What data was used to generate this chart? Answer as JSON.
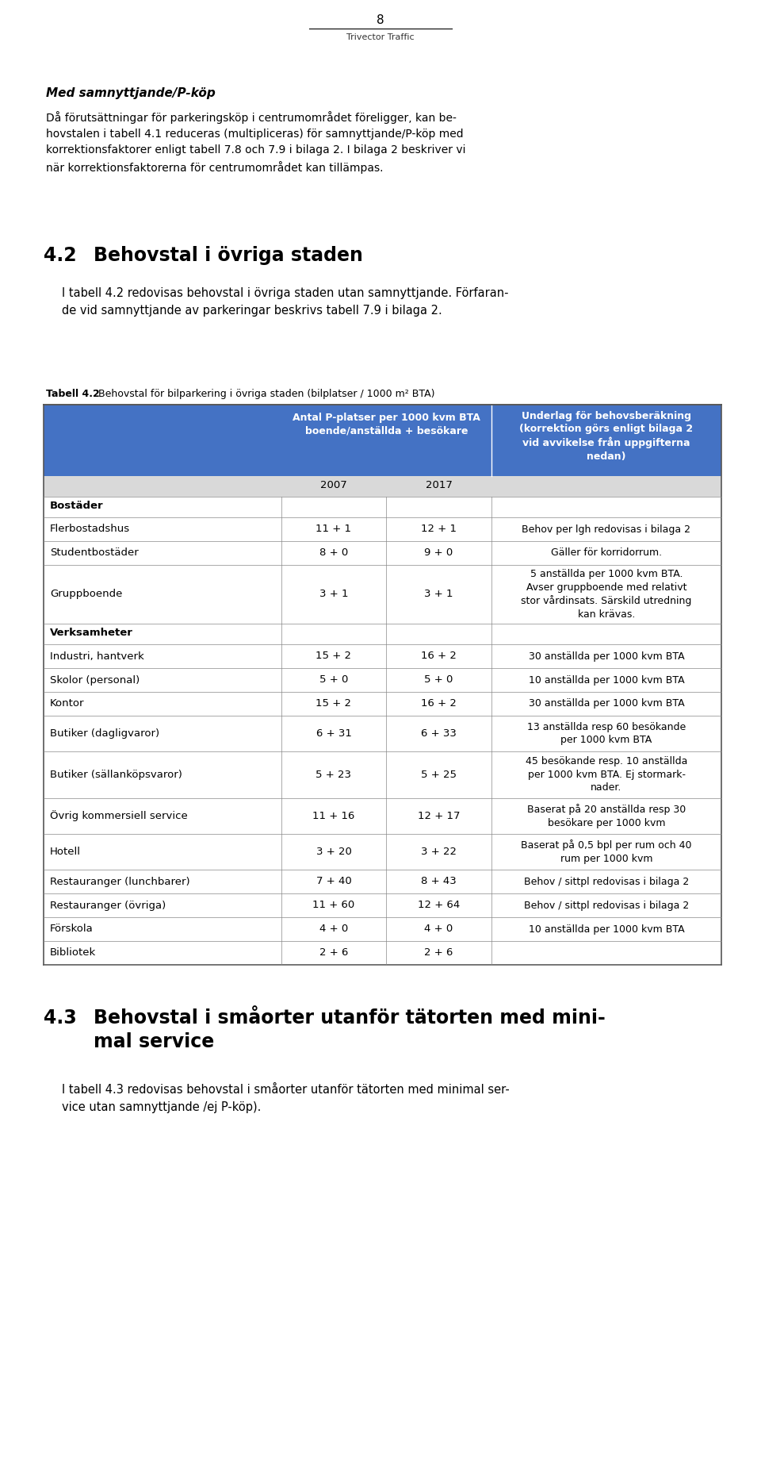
{
  "page_number": "8",
  "page_subtitle": "Trivector Traffic",
  "header_bg": "#4472C4",
  "header_fg": "#FFFFFF",
  "subheader_bg": "#D9D9D9",
  "border_color": "#888888",
  "rows": [
    {
      "category": "Bostäder",
      "type": "section_header",
      "val2007": "",
      "val2017": "",
      "note": ""
    },
    {
      "category": "Flerbostadshus",
      "type": "row",
      "val2007": "11 + 1",
      "val2017": "12 + 1",
      "note": "Behov per lgh redovisas i bilaga 2",
      "note_lines": 1
    },
    {
      "category": "Studentbostäder",
      "type": "row",
      "val2007": "8 + 0",
      "val2017": "9 + 0",
      "note": "Gäller för korridorrum.",
      "note_lines": 1
    },
    {
      "category": "Gruppboende",
      "type": "row",
      "val2007": "3 + 1",
      "val2017": "3 + 1",
      "note": "5 anställda per 1000 kvm BTA.\nAvser gruppboende med relativt\nstor vårdinsats. Särskild utredning\nkan krävas.",
      "note_lines": 4
    },
    {
      "category": "Verksamheter",
      "type": "section_header",
      "val2007": "",
      "val2017": "",
      "note": ""
    },
    {
      "category": "Industri, hantverk",
      "type": "row",
      "val2007": "15 + 2",
      "val2017": "16 + 2",
      "note": "30 anställda per 1000 kvm BTA",
      "note_lines": 1
    },
    {
      "category": "Skolor (personal)",
      "type": "row",
      "val2007": "5 + 0",
      "val2017": "5 + 0",
      "note": "10 anställda per 1000 kvm BTA",
      "note_lines": 1
    },
    {
      "category": "Kontor",
      "type": "row",
      "val2007": "15 + 2",
      "val2017": "16 + 2",
      "note": "30 anställda per 1000 kvm BTA",
      "note_lines": 1
    },
    {
      "category": "Butiker (dagligvaror)",
      "type": "row",
      "val2007": "6 + 31",
      "val2017": "6 + 33",
      "note": "13 anställda resp 60 besökande\nper 1000 kvm BTA",
      "note_lines": 2
    },
    {
      "category": "Butiker (sällanköpsvaror)",
      "type": "row",
      "val2007": "5 + 23",
      "val2017": "5 + 25",
      "note": "45 besökande resp. 10 anställda\nper 1000 kvm BTA. Ej stormark-\nnader.",
      "note_lines": 3
    },
    {
      "category": "Övrig kommersiell service",
      "type": "row",
      "val2007": "11 + 16",
      "val2017": "12 + 17",
      "note": "Baserat på 20 anställda resp 30\nbesökare per 1000 kvm",
      "note_lines": 2
    },
    {
      "category": "Hotell",
      "type": "row",
      "val2007": "3 + 20",
      "val2017": "3 + 22",
      "note": "Baserat på 0,5 bpl per rum och 40\nrum per 1000 kvm",
      "note_lines": 2
    },
    {
      "category": "Restauranger (lunchbarer)",
      "type": "row",
      "val2007": "7 + 40",
      "val2017": "8 + 43",
      "note": "Behov / sittpl redovisas i bilaga 2",
      "note_lines": 1
    },
    {
      "category": "Restauranger (övriga)",
      "type": "row",
      "val2007": "11 + 60",
      "val2017": "12 + 64",
      "note": "Behov / sittpl redovisas i bilaga 2",
      "note_lines": 1
    },
    {
      "category": "Förskola",
      "type": "row",
      "val2007": "4 + 0",
      "val2017": "4 + 0",
      "note": "10 anställda per 1000 kvm BTA",
      "note_lines": 1
    },
    {
      "category": "Bibliotek",
      "type": "row",
      "val2007": "2 + 6",
      "val2017": "2 + 6",
      "note": "",
      "note_lines": 1
    }
  ]
}
